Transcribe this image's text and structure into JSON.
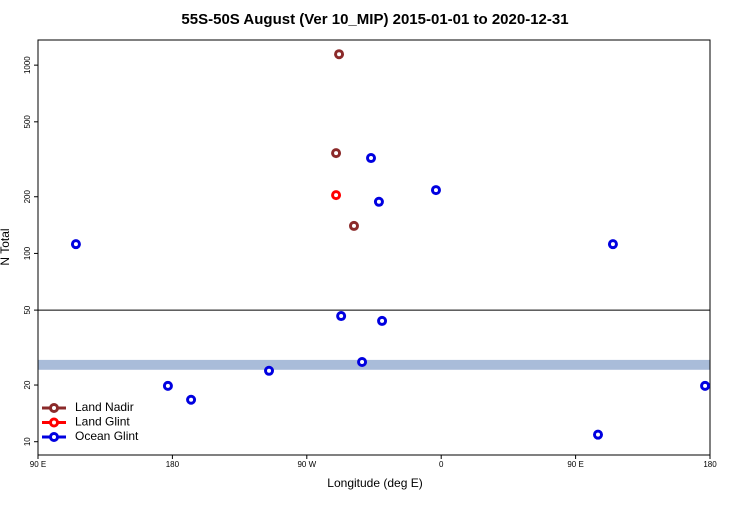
{
  "chart_data": {
    "type": "scatter",
    "title": "55S-50S August (Ver 10_MIP)   2015-01-01 to 2020-12-31",
    "x_label": "Longitude (deg E)",
    "y_label": "N Total",
    "log_y": true,
    "xlim": [
      90,
      540
    ],
    "ylim": [
      8.5,
      1360
    ],
    "xticks": [
      {
        "value": 90,
        "label": "90 E"
      },
      180,
      {
        "value": 270,
        "label": "90 W"
      },
      {
        "value": 360,
        "label": "0"
      },
      {
        "value": 450,
        "label": "90 E"
      },
      {
        "value": 540,
        "label": "180"
      }
    ],
    "yticks": [
      10,
      20,
      50,
      100,
      200,
      500,
      1000
    ],
    "hline": 50,
    "band": [
      24.1,
      27.2
    ],
    "band_color": "#a9bcd9",
    "legend": "bottom-left",
    "series": [
      {
        "name": "Land Nadir",
        "color": "#8b2a2a",
        "x": [
          291.6,
          289.6,
          301.6
        ],
        "values": [
          1143,
          341,
          140
        ]
      },
      {
        "name": "Land Glint",
        "color": "#ff0000",
        "x": [
          289.6
        ],
        "values": [
          204
        ]
      },
      {
        "name": "Ocean Glint",
        "color": "#0000e0",
        "x": [
          115.4,
          313,
          318.3,
          356.5,
          475,
          293,
          320.4,
          307,
          244.7,
          177,
          192.5,
          465,
          536.7
        ],
        "values": [
          112,
          321,
          188,
          217,
          112,
          46.5,
          43.8,
          26.5,
          23.8,
          19.8,
          16.7,
          10.9,
          19.8
        ]
      }
    ]
  }
}
